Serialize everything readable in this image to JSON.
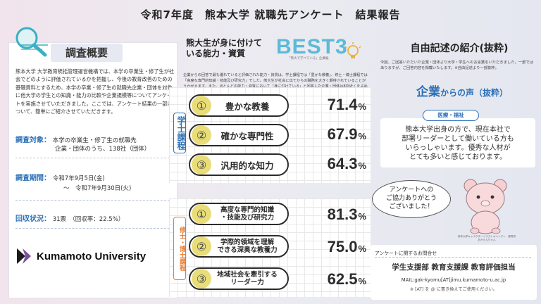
{
  "header": {
    "title": "令和7年度　熊本大学 就職先アンケート　結果報告"
  },
  "summary": {
    "tag": "調査概要",
    "body": "熊本大学 大学教育統括管理運営機構では、本学の卒業生・修了生が社会でどのように評価されているかを把握し、今後の教育改善のための基礎資料とするため、本学の卒業・修了生の就職先企業・団体を対象に他大学の学生との知識・能力の比較や企業規模等についてアンケートを実施させていただきました。ここでは、アンケート結果の一部について、簡単にご紹介させていただきます。",
    "target_label": "調査対象：",
    "target_line1": "本学の卒業生・修了生の就職先",
    "target_line2": "企業・団体のうち、138社（団体）",
    "period_label": "調査期間：",
    "period_line1": "令和7年9月5日(金)",
    "period_line2": "～　令和7年9月30日(火)",
    "response_label": "回収状況：",
    "response_value": "31票　（回収率：22.5%）",
    "logo_text": "Kumamoto University"
  },
  "best3": {
    "heading": "熊大生が身に付けて\nいる能力・資質",
    "logo": "BEST3",
    "logo_sub": "「熊大で学べている」企業編",
    "intro": "企業からの回答で最も優れていると評価された能力・資質は、学士課程では「豊かな教養」、修士・博士課程では「高度な専門的知識・技能及び研究力」でした。熊大生が社会に出てからの職務を大きく期待されていることがうかがえます。また、ほとんどの能力・資質において「身に付けている」と回答した企業・団体は8割近くを占めていました。",
    "undergrad_label": "学士課程",
    "grad_label": "修士・博士課程",
    "undergrad": [
      {
        "rank": "①",
        "label": "豊かな教養",
        "value": "71.4",
        "unit": "%"
      },
      {
        "rank": "②",
        "label": "確かな専門性",
        "value": "67.9",
        "unit": "%"
      },
      {
        "rank": "③",
        "label": "汎用的な知力",
        "value": "64.3",
        "unit": "%"
      }
    ],
    "grad": [
      {
        "rank": "①",
        "label": "高度な専門的知識\n・技能及び研究力",
        "value": "81.3",
        "unit": "%"
      },
      {
        "rank": "②",
        "label": "学際的領域を理解\nできる深奥な教養力",
        "value": "75.0",
        "unit": "%"
      },
      {
        "rank": "③",
        "label": "地域社会を牽引する\nリーダー力",
        "value": "62.5",
        "unit": "%"
      }
    ]
  },
  "free_comments": {
    "title": "自由記述の紹介(抜粋)",
    "intro": "今回、ご回答いただいた企業・団体より大学・学生へのお言葉をいただきました。一部ではありますが、ご回答内容を掲載いたします。※自由記述より一部抜粋。",
    "voice_big": "企業",
    "voice_small": "からの声（抜粋）",
    "category": "医療・福祉",
    "voice_text": "熊本大学出身の方で、現在本社で\n部署リーダーとして働いている方も\nいらっしゃいます。優秀な人材が\nとても多いと感じております。",
    "bubble_text": "アンケートへの\nご協力ありがとう\nございました！",
    "mascot_caption": "熊本大学キャラクターイラストキャンディ　優秀賞\nあからんちゃん"
  },
  "contact": {
    "heading": "アンケートに関するお問合せ",
    "dept": "学生支援部 教育支援課 教育評価担当",
    "mail": "MAIL:gak-kyomu[AT]jimu.kumamoto-u.ac.jp",
    "note": "※ [AT] を @ に書き換えてご使用ください。"
  },
  "colors": {
    "accent_blue": "#2c6fb7",
    "accent_orange": "#e8782a",
    "rank_yellow": "#e9dd79",
    "best3_cyan": "#5cbad8"
  },
  "icons": [
    "magnifier-icon",
    "lightbulb-icon",
    "mascot-bear",
    "kumamoto-logo-mark"
  ]
}
